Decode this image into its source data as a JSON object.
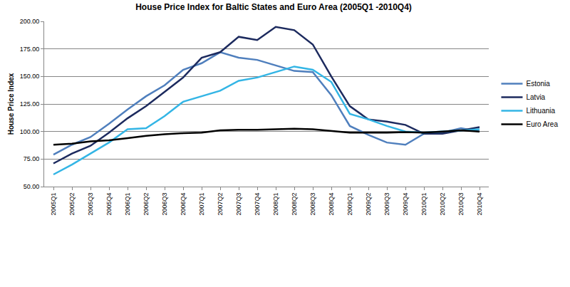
{
  "chart_data": {
    "type": "line",
    "title": "House Price Index for Baltic States and Euro Area (2005Q1 -2010Q4)",
    "y_label": "House Price Index",
    "categories": [
      "2005Q1",
      "2005Q2",
      "2005Q3",
      "2005Q4",
      "2006Q1",
      "2006Q2",
      "2006Q3",
      "2006Q4",
      "2007Q1",
      "2007Q2",
      "2007Q3",
      "2007Q4",
      "2008Q1",
      "2008Q2",
      "2008Q3",
      "2008Q4",
      "2009Q1",
      "2009Q2",
      "2009Q3",
      "2009Q4",
      "2010Q1",
      "2010Q2",
      "2010Q3",
      "2010Q4"
    ],
    "series": [
      {
        "name": "Estonia",
        "color": "#4f7fbd",
        "values": [
          79,
          88,
          95,
          107,
          120,
          132,
          142,
          156,
          162,
          172,
          167,
          165,
          160,
          155,
          154,
          133,
          105,
          97,
          90,
          88,
          98,
          99,
          103,
          100
        ]
      },
      {
        "name": "Latvia",
        "color": "#1c2a5e",
        "values": [
          71,
          80,
          87,
          99,
          112,
          123,
          136,
          149,
          167,
          172,
          186,
          183,
          195,
          192,
          179,
          150,
          123,
          111,
          109,
          106,
          98,
          98,
          101,
          104
        ]
      },
      {
        "name": "Lithuania",
        "color": "#33b5e5",
        "values": [
          61,
          70,
          80,
          90,
          102,
          103,
          114,
          127,
          132,
          137,
          146,
          149,
          154,
          159,
          156,
          145,
          116,
          111,
          105,
          100,
          99,
          100,
          101,
          102
        ]
      },
      {
        "name": "Euro Area",
        "color": "#000000",
        "values": [
          88,
          89,
          91,
          92,
          94,
          96,
          97.5,
          98.5,
          99,
          101,
          101.5,
          101.5,
          102,
          102.5,
          102,
          100.5,
          99,
          99,
          99,
          99.5,
          99,
          100,
          101,
          100
        ]
      }
    ],
    "ylim": [
      50,
      200
    ],
    "yticks": [
      {
        "value": 50,
        "label": "50.00"
      },
      {
        "value": 75,
        "label": "75.00"
      },
      {
        "value": 100,
        "label": "100.00"
      },
      {
        "value": 125,
        "label": "125.00"
      },
      {
        "value": 150,
        "label": "150.00"
      },
      {
        "value": 175,
        "label": "175.00"
      },
      {
        "value": 200,
        "label": "200.00"
      }
    ],
    "grid": true,
    "legend": "right"
  }
}
